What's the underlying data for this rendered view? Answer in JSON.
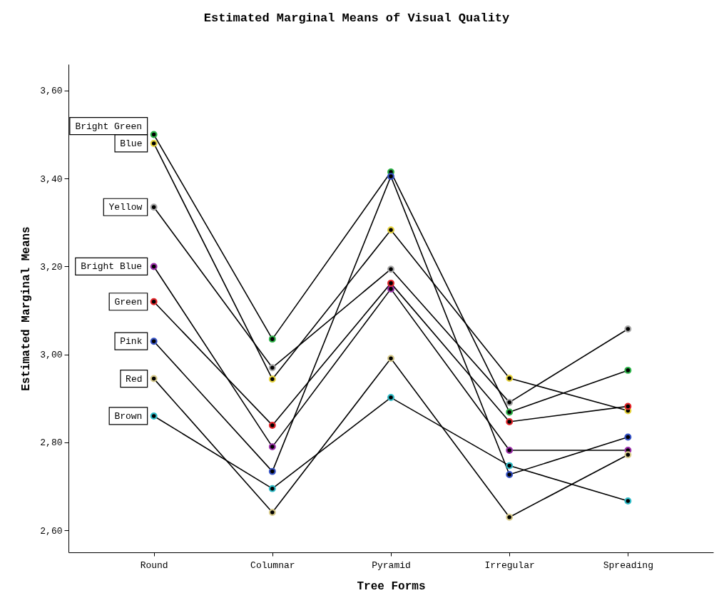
{
  "chart_data": {
    "type": "line",
    "title": "Estimated Marginal Means of Visual Quality",
    "xlabel": "Tree Forms",
    "ylabel": "Estimated Marginal Means",
    "categories": [
      "Round",
      "Columnar",
      "Pyramid",
      "Irregular",
      "Spreading"
    ],
    "ylim": [
      2.55,
      3.66
    ],
    "yticks": [
      {
        "value": 2.6,
        "label": "2,60"
      },
      {
        "value": 2.8,
        "label": "2,80"
      },
      {
        "value": 3.0,
        "label": "3,00"
      },
      {
        "value": 3.2,
        "label": "3,20"
      },
      {
        "value": 3.4,
        "label": "3,40"
      },
      {
        "value": 3.6,
        "label": "3,60"
      }
    ],
    "grid": false,
    "legend": false,
    "marker": "circle",
    "line_style": "solid",
    "series": [
      {
        "name": "Bright Green",
        "color": "#2fb34a",
        "values": [
          3.5,
          3.035,
          3.415,
          2.869,
          2.964
        ]
      },
      {
        "name": "Blue",
        "color": "#e6d23c",
        "values": [
          3.48,
          2.944,
          3.283,
          2.946,
          2.872
        ]
      },
      {
        "name": "Yellow",
        "color": "#a8a8a8",
        "values": [
          3.335,
          2.97,
          3.194,
          2.891,
          3.058
        ]
      },
      {
        "name": "Bright Blue",
        "color": "#9a2fa8",
        "values": [
          3.2,
          2.79,
          3.149,
          2.782,
          2.782
        ]
      },
      {
        "name": "Green",
        "color": "#e3262b",
        "values": [
          3.12,
          2.839,
          3.162,
          2.847,
          2.882
        ]
      },
      {
        "name": "Pink",
        "color": "#3552c4",
        "values": [
          3.03,
          2.734,
          3.405,
          2.727,
          2.812
        ]
      },
      {
        "name": "Red",
        "color": "#d6c98a",
        "values": [
          2.945,
          2.641,
          2.991,
          2.63,
          2.772
        ]
      },
      {
        "name": "Brown",
        "color": "#2fbcc8",
        "values": [
          2.86,
          2.695,
          2.902,
          2.747,
          2.667
        ]
      }
    ]
  }
}
